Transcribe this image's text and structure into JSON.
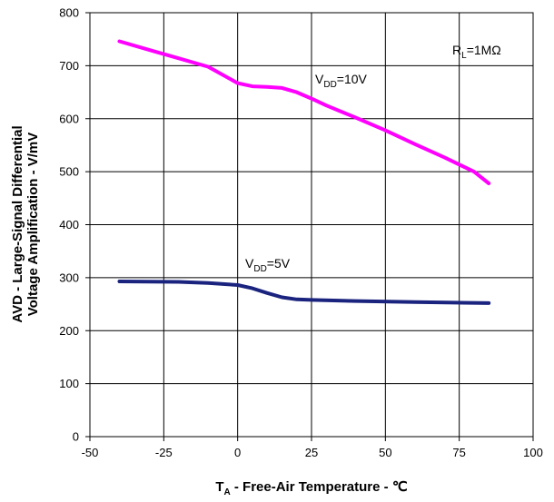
{
  "chart_data": {
    "type": "line",
    "xlabel": {
      "main": "T",
      "sub": "A",
      "rest": " - Free-Air Temperature - ℃"
    },
    "ylabel_line1": "AVD - Large-Signal Differential",
    "ylabel_line2": "Voltage Amplification - V/mV",
    "xlim": [
      -50,
      100
    ],
    "ylim": [
      0,
      800
    ],
    "x_ticks": [
      -50,
      -25,
      0,
      25,
      50,
      75,
      100
    ],
    "y_ticks": [
      0,
      100,
      200,
      300,
      400,
      500,
      600,
      700,
      800
    ],
    "grid": true,
    "series": [
      {
        "label_main": "V",
        "label_sub": "DD",
        "label_rest": "=10V",
        "color": "#ff00ff",
        "x": [
          -40,
          -30,
          -20,
          -10,
          0,
          5,
          10,
          15,
          20,
          25,
          30,
          40,
          50,
          60,
          70,
          80,
          85
        ],
        "y": [
          746,
          730,
          714,
          698,
          667,
          661,
          660,
          658,
          650,
          638,
          625,
          602,
          578,
          552,
          527,
          500,
          478
        ]
      },
      {
        "label_main": "V",
        "label_sub": "DD",
        "label_rest": "=5V",
        "color": "#1a237e",
        "x": [
          -40,
          -20,
          -10,
          0,
          5,
          10,
          15,
          20,
          25,
          40,
          60,
          85
        ],
        "y": [
          293,
          292,
          290,
          286,
          280,
          271,
          263,
          259,
          258,
          256,
          254,
          252
        ]
      }
    ],
    "annotation": {
      "main": "R",
      "sub": "L",
      "rest": "=1MΩ"
    }
  }
}
